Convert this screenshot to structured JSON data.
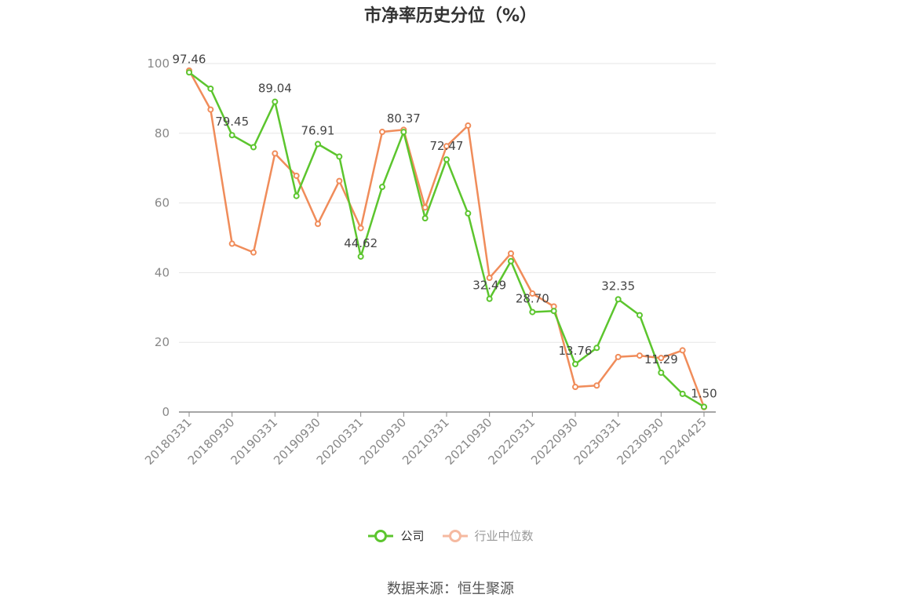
{
  "title": "市净率历史分位（%）",
  "source": "数据来源：恒生聚源",
  "colors": {
    "company": "#5cc52e",
    "industry": "#f08c5a",
    "industry_legend": "#f5b9a0"
  },
  "chart_data": {
    "type": "line",
    "title": "市净率历史分位（%）",
    "ylim": [
      0,
      100
    ],
    "yticks": [
      0,
      20,
      40,
      60,
      80,
      100
    ],
    "grid": true,
    "legend_position": "bottom",
    "x": [
      "20180331",
      "20180630",
      "20180930",
      "20181231",
      "20190331",
      "20190630",
      "20190930",
      "20191231",
      "20200331",
      "20200630",
      "20200930",
      "20201231",
      "20210331",
      "20210630",
      "20210930",
      "20211231",
      "20220331",
      "20220630",
      "20220930",
      "20221231",
      "20230331",
      "20230630",
      "20230930",
      "20231231",
      "20240425"
    ],
    "xtick_labels": [
      "20180331",
      "20180930",
      "20190331",
      "20190930",
      "20200331",
      "20200930",
      "20210331",
      "20210930",
      "20220331",
      "20220930",
      "20230331",
      "20230930",
      "20240425"
    ],
    "series": [
      {
        "name": "公司",
        "values": [
          97.46,
          92.8,
          79.45,
          76.0,
          89.04,
          62.0,
          76.91,
          73.3,
          44.62,
          64.6,
          80.37,
          55.6,
          72.47,
          57.0,
          32.49,
          43.3,
          28.7,
          29.0,
          13.76,
          18.4,
          32.35,
          27.8,
          11.29,
          5.2,
          1.5
        ]
      },
      {
        "name": "行业中位数",
        "values": [
          98.0,
          86.8,
          48.3,
          45.8,
          74.2,
          67.8,
          54.0,
          66.3,
          52.8,
          80.4,
          81.0,
          58.7,
          76.3,
          82.2,
          38.5,
          45.5,
          34.0,
          30.3,
          7.2,
          7.6,
          15.8,
          16.2,
          15.5,
          17.7,
          1.4
        ]
      }
    ],
    "data_labels": [
      {
        "series": 0,
        "index": 0,
        "text": "97.46"
      },
      {
        "series": 0,
        "index": 2,
        "text": "79.45"
      },
      {
        "series": 0,
        "index": 4,
        "text": "89.04"
      },
      {
        "series": 0,
        "index": 6,
        "text": "76.91"
      },
      {
        "series": 0,
        "index": 8,
        "text": "44.62"
      },
      {
        "series": 0,
        "index": 10,
        "text": "80.37"
      },
      {
        "series": 0,
        "index": 12,
        "text": "72.47"
      },
      {
        "series": 0,
        "index": 14,
        "text": "32.49"
      },
      {
        "series": 0,
        "index": 16,
        "text": "28.70"
      },
      {
        "series": 0,
        "index": 18,
        "text": "13.76"
      },
      {
        "series": 0,
        "index": 20,
        "text": "32.35"
      },
      {
        "series": 0,
        "index": 22,
        "text": "11.29"
      },
      {
        "series": 0,
        "index": 24,
        "text": "1.50"
      }
    ]
  }
}
